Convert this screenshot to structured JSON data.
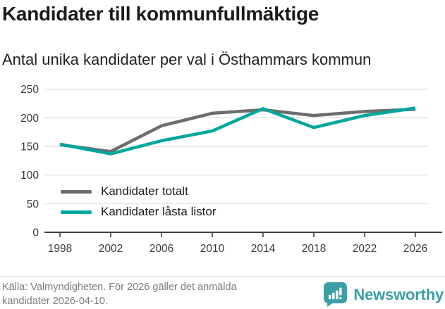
{
  "chart_data": {
    "type": "line",
    "title": "Kandidater till kommunfullmäktige",
    "subtitle": "Antal unika kandidater per val i Östhammars kommun",
    "categories": [
      "1998",
      "2002",
      "2006",
      "2010",
      "2014",
      "2018",
      "2022",
      "2026"
    ],
    "series": [
      {
        "name": "Kandidater totalt",
        "color": "#6d6d6d",
        "values": [
          153,
          141,
          186,
          208,
          214,
          204,
          211,
          215
        ]
      },
      {
        "name": "Kandidater låsta listor",
        "color": "#00a79d",
        "values": [
          154,
          137,
          160,
          177,
          216,
          183,
          204,
          217
        ]
      }
    ],
    "ylim": [
      0,
      250
    ],
    "yticks": [
      0,
      50,
      100,
      150,
      200,
      250
    ],
    "grid": true,
    "legend_position": "inside-bottom-left",
    "axis_color": "#3f3f3f",
    "gridline_color": "#e4e4e4",
    "tick_label_color": "#3a3a3a"
  },
  "footer": {
    "source": "Källa: Valmyndigheten. För 2026 gäller det anmälda kandidater 2026-04-10.",
    "brand": "Newsworthy",
    "brand_color": "#3b9fa5",
    "logo_icon": "bar-chart-speech-bubble"
  }
}
